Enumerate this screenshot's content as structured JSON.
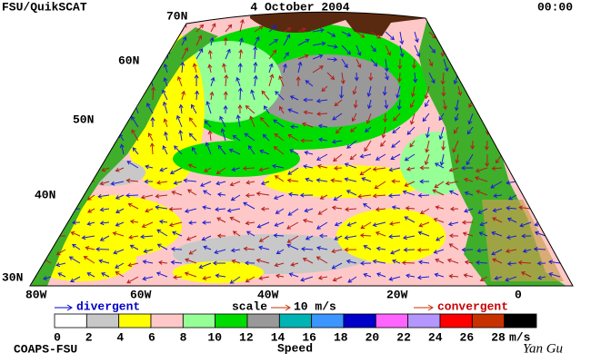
{
  "header": {
    "left": "FSU/QuikSCAT",
    "center": "4 October 2004",
    "right": "00:00"
  },
  "map": {
    "lat_labels": [
      "70N",
      "60N",
      "50N",
      "40N",
      "30N"
    ],
    "lon_labels": [
      "80W",
      "60W",
      "40W",
      "20W",
      "0"
    ]
  },
  "legend": {
    "divergent": "divergent",
    "scale": "scale",
    "scale_value": "10 m/s",
    "convergent": "convergent"
  },
  "colorbar": {
    "colors": [
      "#ffffff",
      "#c8c8c8",
      "#ffff00",
      "#ffc8c8",
      "#96ff96",
      "#00dc00",
      "#999999",
      "#00b4b4",
      "#3c96ff",
      "#0000c8",
      "#ff64ff",
      "#b496ff",
      "#ff0000",
      "#c83200",
      "#000000"
    ],
    "labels": [
      "0",
      "2",
      "4",
      "6",
      "8",
      "10",
      "12",
      "14",
      "16",
      "18",
      "20",
      "22",
      "24",
      "26",
      "28"
    ],
    "unit": "m/s",
    "title": "Speed"
  },
  "footer": {
    "left": "COAPS-FSU",
    "right": "Yan Gu"
  }
}
